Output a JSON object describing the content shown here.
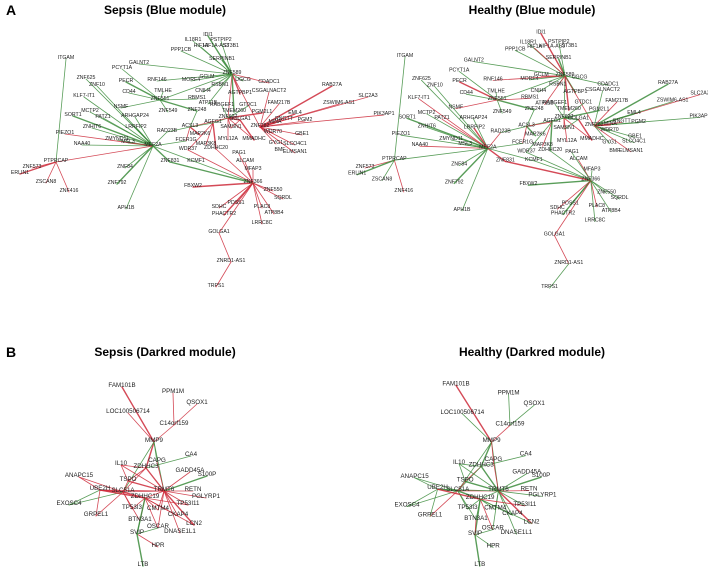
{
  "figure": {
    "panel_letters": {
      "a": "A",
      "b": "B"
    },
    "titles": {
      "sepsis_blue": "Sepsis (Blue module)",
      "healthy_blue": "Healthy (Blue module)",
      "sepsis_darkred": "Sepsis (Darkred module)",
      "healthy_darkred": "Healthy (Darkred module)"
    },
    "edge_colors": {
      "positive": "#cc2a3a",
      "negative": "#3c8c3c"
    }
  },
  "blue_network": {
    "nodes": [
      "IDI1",
      "IL18R1",
      "PSTPIP2",
      "HIF1A",
      "HIF1A-AS3",
      "ST3B1",
      "PPP1CB",
      "SERPINB1",
      "ITGAM",
      "GALNT2",
      "PCYT1A",
      "ZNF589",
      "ZNF625",
      "ZNF10",
      "PECR",
      "RNF146",
      "MORF4",
      "GCLM",
      "UGCG",
      "CDADC1",
      "KLF7-IT1",
      "CD44",
      "TMLHE",
      "CNIH4",
      "RSBN1",
      "CSGALNACT2",
      "RAB27A",
      "SLC2A3",
      "SORT1",
      "MCTP2",
      "PATZ1",
      "NSMF",
      "ZNF551",
      "RBMS1",
      "AGTPBP1",
      "FAM217B",
      "ZSWIM6-AS1",
      "PIK3AP1",
      "ARHGAP24",
      "ZNF549",
      "ATP11B",
      "EML4",
      "ZNHIT6",
      "ZNF248",
      "RABGEF1",
      "GTDC1",
      "RNGTT",
      "PGM2",
      "PIEZO1",
      "LRRFIP2",
      "ZMYND11",
      "ACSL3",
      "AGFG1",
      "TMEM260",
      "PGM2L1",
      "GBE1",
      "MINA",
      "NAA40",
      "RAD23B",
      "ZNF627",
      "GOLGA1",
      "ZNF282",
      "WDR70",
      "SLCO4C1",
      "MEF2A",
      "MSL3",
      "SAMSN1",
      "MAP2K6",
      "MMADHC",
      "GYG1",
      "ELMSAN1",
      "PTPRCAP",
      "ZNF84",
      "FCER1G",
      "MYL12A",
      "BMF",
      "ERLIN1",
      "ZNF573",
      "ZNF831",
      "KCMF1",
      "ALCAM",
      "ZSCAN8",
      "WDR37",
      "ZDHHC20",
      "MAP3K8",
      "MFAP3",
      "ZNF416",
      "ZNF792",
      "PAG1",
      "FBXW2",
      "ZNF366",
      "ZNF550",
      "APH1B",
      "SDHC",
      "PDSS1",
      "SQRDL",
      "PHACTR2",
      "PLAC8",
      "ATP8B4",
      "LRRC8C",
      "ZNRD1-AS1",
      "TRPS1"
    ],
    "sepsis_hubs": [
      "ZNF589",
      "ZNF627",
      "ZNF282",
      "ZNF366",
      "MEF2A",
      "ZNF551",
      "ACSL3",
      "AGFG1",
      "GOLGA1"
    ],
    "healthy_hubs": [
      "ZNF589",
      "ZNF627",
      "ZNF282",
      "ZNF366",
      "MEF2A",
      "ZNF551",
      "AGFG1",
      "RAD23B"
    ]
  },
  "darkred_network": {
    "nodes": [
      "FAM101B",
      "PPM1M",
      "QSOX1",
      "LOC100506714",
      "C14orf159",
      "MMP9",
      "CA4",
      "CAPG",
      "IL10",
      "ZDHHC3",
      "GADD45A",
      "S100P",
      "ANAPC15",
      "TSPO",
      "TRMT6",
      "RETN",
      "UBE2H",
      "SLC51A",
      "PGLYRP1",
      "EXOSC4",
      "ZDHHC19",
      "TP53I11",
      "GRPEL1",
      "TP53I3",
      "CMTM4",
      "CKAP4",
      "BTN3A1",
      "LCN2",
      "OSCAR",
      "DNASE1L1",
      "SVIP",
      "HPR",
      "LTB"
    ],
    "sepsis_hubs": [
      "TRMT6",
      "SLC51A",
      "ZDHHC19",
      "UBE2H",
      "TSPO",
      "ZDHHC3"
    ],
    "healthy_hubs": [
      "TRMT6",
      "SLC51A",
      "ZDHHC19",
      "UBE2H",
      "TSPO"
    ]
  }
}
